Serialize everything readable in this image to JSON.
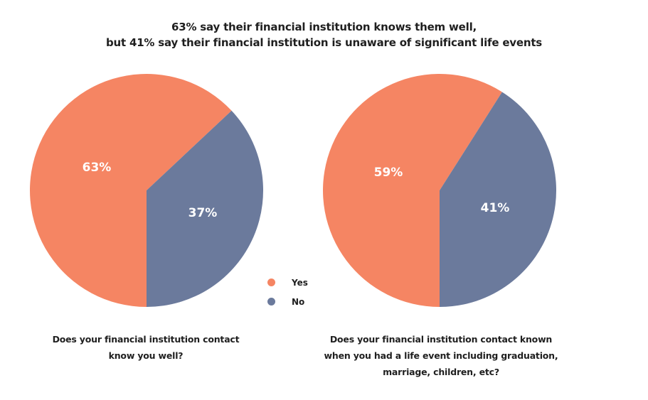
{
  "title": {
    "line1": "63% say their financial institution knows them well,",
    "line2": "but 41% say their financial institution is unaware of significant life events"
  },
  "colors": {
    "yes": "#F58563",
    "no": "#6B7A9C",
    "label_text": "#FFFFFF"
  },
  "legend": {
    "items": [
      {
        "label": "Yes",
        "color": "#F58563"
      },
      {
        "label": "No",
        "color": "#6B7A9C"
      }
    ]
  },
  "pies": [
    {
      "yes_label": "63%",
      "no_label": "37%",
      "caption": {
        "line1": "Does your financial institution contact",
        "line2": "know you well?"
      }
    },
    {
      "yes_label": "59%",
      "no_label": "41%",
      "caption": {
        "line1": "Does your financial institution contact known",
        "line2": "when you had a life event including graduation,",
        "line3": "marriage, children, etc?"
      }
    }
  ],
  "chart_data": [
    {
      "type": "pie",
      "title": "63% say their financial institution knows them well, but 41% say their financial institution is unaware of significant life events",
      "subtitle": "Does your financial institution contact know you well?",
      "categories": [
        "Yes",
        "No"
      ],
      "values": [
        63,
        37
      ],
      "unit": "%",
      "colors": [
        "#F58563",
        "#6B7A9C"
      ],
      "legend_position": "center-between-charts"
    },
    {
      "type": "pie",
      "title": "63% say their financial institution knows them well, but 41% say their financial institution is unaware of significant life events",
      "subtitle": "Does your financial institution contact known when you had a life event including graduation, marriage, children, etc?",
      "categories": [
        "Yes",
        "No"
      ],
      "values": [
        59,
        41
      ],
      "unit": "%",
      "colors": [
        "#F58563",
        "#6B7A9C"
      ],
      "legend_position": "center-between-charts"
    }
  ]
}
